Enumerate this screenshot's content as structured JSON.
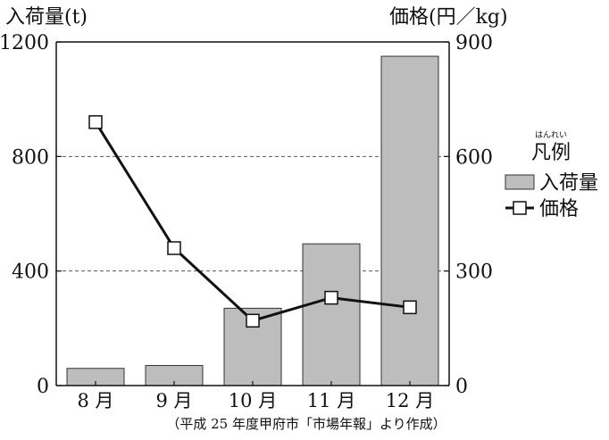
{
  "chart_data": {
    "type": "bar",
    "categories": [
      "8 月",
      "9 月",
      "10 月",
      "11 月",
      "12 月"
    ],
    "series": [
      {
        "name": "入荷量",
        "type": "bar",
        "axis": "left",
        "values": [
          60,
          70,
          270,
          495,
          1150
        ],
        "color": "#bdbdbd"
      },
      {
        "name": "価格",
        "type": "line",
        "axis": "right",
        "values": [
          690,
          360,
          170,
          230,
          205
        ],
        "color": "#111111",
        "marker": "hollow-square"
      }
    ],
    "left_axis": {
      "label": "入荷量(t)",
      "ylim": [
        0,
        1200
      ],
      "ticks": [
        0,
        400,
        800,
        1200
      ]
    },
    "right_axis": {
      "label": "価格(円／kg)",
      "ylim": [
        0,
        900
      ],
      "ticks": [
        0,
        300,
        600,
        900
      ]
    },
    "grid": "dashed horizontal at inner ticks",
    "legend": {
      "title": "凡例",
      "title_ruby": "はんれい",
      "placement": "right-middle"
    },
    "source_note": "（平成 25 年度甲府市「市場年報」より作成）",
    "colors": {
      "bar_fill": "#bdbdbd",
      "bar_stroke": "#333333",
      "line": "#111111",
      "grid": "#555555"
    }
  }
}
